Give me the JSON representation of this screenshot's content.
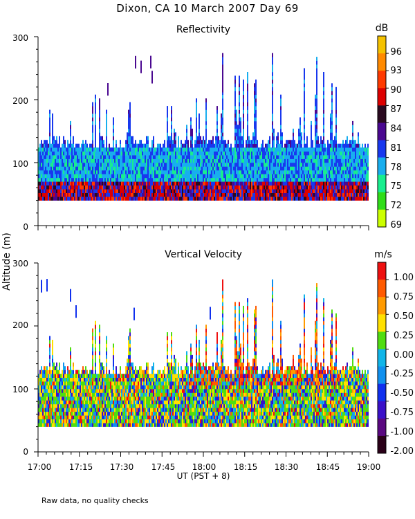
{
  "title": "Dixon, CA 10 March 2007  Day  69",
  "ylabel_shared": "Altitude (m)",
  "footnote": "Raw data, no quality checks",
  "chart_data": [
    {
      "type": "heatmap",
      "title": "Reflectivity",
      "colorbar_unit": "dB",
      "colorbar_labels": [
        "96",
        "93",
        "90",
        "87",
        "84",
        "81",
        "78",
        "75",
        "72",
        "69"
      ],
      "colorbar_colors": [
        "#f5c200",
        "#ff8a00",
        "#ff3a00",
        "#dd0000",
        "#2a0a20",
        "#4a0890",
        "#1838ee",
        "#18aeee",
        "#18ee8e",
        "#30dd18",
        "#ccff00"
      ],
      "colorbar_value_range": [
        67.5,
        100.5
      ],
      "y_tick_labels": [
        "0",
        "100",
        "200",
        "300"
      ],
      "ylim": [
        0,
        300
      ],
      "altitude_range_with_echo": [
        40,
        280
      ],
      "dominant_value": 78,
      "peak_value": 90
    },
    {
      "type": "heatmap",
      "title": "Vertical Velocity",
      "colorbar_unit": "m/s",
      "colorbar_labels": [
        "1.00",
        "0.75",
        "0.50",
        "0.25",
        "0.00",
        "-0.25",
        "-0.50",
        "-0.75",
        "-1.00",
        "-2.00"
      ],
      "colorbar_colors": [
        "#ee1010",
        "#ff5a00",
        "#ff9a00",
        "#ffe000",
        "#50dd10",
        "#10b5e8",
        "#1090ee",
        "#1030ee",
        "#3a10c8",
        "#5a0880",
        "#2a0018"
      ],
      "colorbar_value_range": [
        -2.25,
        1.25
      ],
      "y_tick_labels": [
        "0",
        "100",
        "200",
        "300"
      ],
      "ylim": [
        0,
        300
      ],
      "altitude_range_with_echo": [
        40,
        280
      ],
      "dominant_value": 0.25,
      "peak_value": 1.0
    }
  ],
  "x_axis": {
    "label": "UT  (PST + 8)",
    "tick_labels": [
      "17:00",
      "17:15",
      "17:30",
      "17:45",
      "18:00",
      "18:15",
      "18:30",
      "18:45",
      "19:00"
    ],
    "range_minutes": [
      0,
      120
    ]
  }
}
